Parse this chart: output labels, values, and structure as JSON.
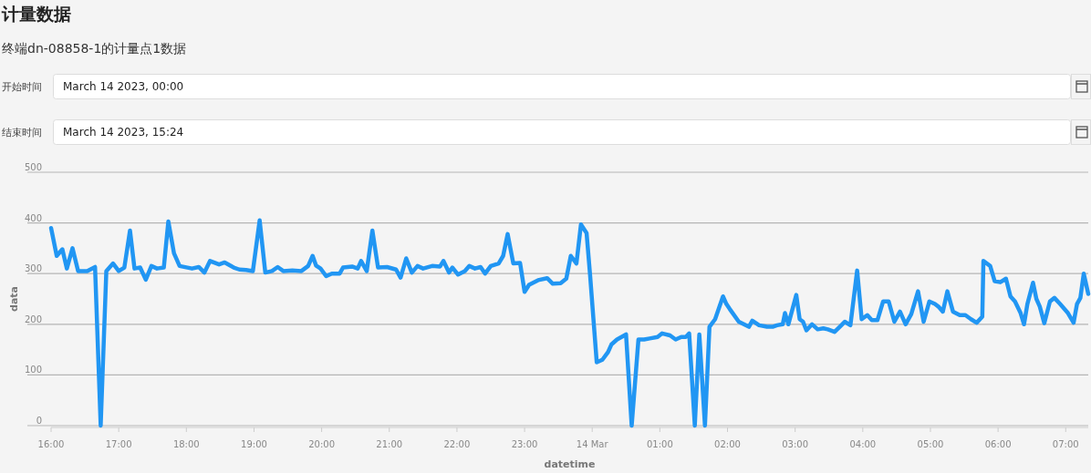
{
  "chart_data": {
    "type": "line",
    "title": "计量数据",
    "subtitle": "终端dn-08858-1的计量点1数据",
    "annotations": [
      "开始时间",
      "March 14 2023, 00:00",
      "结束时间",
      "March 14 2023, 15:24"
    ],
    "xlabel": "datetime",
    "ylabel": "data",
    "xlim": [
      "2023-03-13T16:00",
      "2023-03-14T07:20"
    ],
    "ylim": [
      0,
      500
    ],
    "xticks": [
      {
        "value": "2023-03-13T16:00",
        "label": "16:00"
      },
      {
        "value": "2023-03-13T17:00",
        "label": "17:00"
      },
      {
        "value": "2023-03-13T18:00",
        "label": "18:00"
      },
      {
        "value": "2023-03-13T19:00",
        "label": "19:00"
      },
      {
        "value": "2023-03-13T20:00",
        "label": "20:00"
      },
      {
        "value": "2023-03-13T21:00",
        "label": "21:00"
      },
      {
        "value": "2023-03-13T22:00",
        "label": "22:00"
      },
      {
        "value": "2023-03-13T23:00",
        "label": "23:00"
      },
      {
        "value": "2023-03-14T00:00",
        "label": "14 Mar"
      },
      {
        "value": "2023-03-14T01:00",
        "label": "01:00"
      },
      {
        "value": "2023-03-14T02:00",
        "label": "02:00"
      },
      {
        "value": "2023-03-14T03:00",
        "label": "03:00"
      },
      {
        "value": "2023-03-14T04:00",
        "label": "04:00"
      },
      {
        "value": "2023-03-14T05:00",
        "label": "05:00"
      },
      {
        "value": "2023-03-14T06:00",
        "label": "06:00"
      },
      {
        "value": "2023-03-14T07:00",
        "label": "07:00"
      }
    ],
    "yticks": [
      0,
      100,
      200,
      300,
      400,
      500
    ],
    "grid": "y",
    "x": [
      "2023-03-13T16:00",
      "2023-03-13T16:05",
      "2023-03-13T16:10",
      "2023-03-13T16:14",
      "2023-03-13T16:19",
      "2023-03-13T16:24",
      "2023-03-13T16:32",
      "2023-03-13T16:39",
      "2023-03-13T16:44",
      "2023-03-13T16:49",
      "2023-03-13T16:55",
      "2023-03-13T17:00",
      "2023-03-13T17:05",
      "2023-03-13T17:10",
      "2023-03-13T17:14",
      "2023-03-13T17:19",
      "2023-03-13T17:24",
      "2023-03-13T17:29",
      "2023-03-13T17:34",
      "2023-03-13T17:40",
      "2023-03-13T17:44",
      "2023-03-13T17:49",
      "2023-03-13T17:54",
      "2023-03-13T18:05",
      "2023-03-13T18:11",
      "2023-03-13T18:16",
      "2023-03-13T18:21",
      "2023-03-13T18:29",
      "2023-03-13T18:34",
      "2023-03-13T18:42",
      "2023-03-13T18:47",
      "2023-03-13T18:53",
      "2023-03-13T18:59",
      "2023-03-13T19:05",
      "2023-03-13T19:10",
      "2023-03-13T19:16",
      "2023-03-13T19:21",
      "2023-03-13T19:26",
      "2023-03-13T19:34",
      "2023-03-13T19:42",
      "2023-03-13T19:48",
      "2023-03-13T19:52",
      "2023-03-13T19:55",
      "2023-03-13T19:59",
      "2023-03-13T20:04",
      "2023-03-13T20:09",
      "2023-03-13T20:16",
      "2023-03-13T20:19",
      "2023-03-13T20:27",
      "2023-03-13T20:32",
      "2023-03-13T20:35",
      "2023-03-13T20:40",
      "2023-03-13T20:45",
      "2023-03-13T20:50",
      "2023-03-13T20:58",
      "2023-03-13T21:06",
      "2023-03-13T21:10",
      "2023-03-13T21:15",
      "2023-03-13T21:20",
      "2023-03-13T21:25",
      "2023-03-13T21:30",
      "2023-03-13T21:38",
      "2023-03-13T21:45",
      "2023-03-13T21:48",
      "2023-03-13T21:53",
      "2023-03-13T21:56",
      "2023-03-13T22:01",
      "2023-03-13T22:07",
      "2023-03-13T22:11",
      "2023-03-13T22:16",
      "2023-03-13T22:21",
      "2023-03-13T22:25",
      "2023-03-13T22:30",
      "2023-03-13T22:37",
      "2023-03-13T22:41",
      "2023-03-13T22:45",
      "2023-03-13T22:50",
      "2023-03-13T22:56",
      "2023-03-13T23:00",
      "2023-03-13T23:04",
      "2023-03-13T23:12",
      "2023-03-13T23:20",
      "2023-03-13T23:25",
      "2023-03-13T23:32",
      "2023-03-13T23:37",
      "2023-03-13T23:41",
      "2023-03-13T23:46",
      "2023-03-13T23:50",
      "2023-03-13T23:55",
      "2023-03-13T23:58",
      "2023-03-14T00:04",
      "2023-03-14T00:09",
      "2023-03-14T00:14",
      "2023-03-14T00:17",
      "2023-03-14T00:22",
      "2023-03-14T00:30",
      "2023-03-14T00:35",
      "2023-03-14T00:41",
      "2023-03-14T00:46",
      "2023-03-14T00:51",
      "2023-03-14T00:58",
      "2023-03-14T01:02",
      "2023-03-14T01:09",
      "2023-03-14T01:14",
      "2023-03-14T01:19",
      "2023-03-14T01:23",
      "2023-03-14T01:26",
      "2023-03-14T01:31",
      "2023-03-14T01:35",
      "2023-03-14T01:40",
      "2023-03-14T01:44",
      "2023-03-14T01:49",
      "2023-03-14T01:56",
      "2023-03-14T01:59",
      "2023-03-14T02:02",
      "2023-03-14T02:10",
      "2023-03-14T02:19",
      "2023-03-14T02:22",
      "2023-03-14T02:28",
      "2023-03-14T02:35",
      "2023-03-14T02:40",
      "2023-03-14T02:44",
      "2023-03-14T02:49",
      "2023-03-14T02:51",
      "2023-03-14T02:54",
      "2023-03-14T03:01",
      "2023-03-14T03:04",
      "2023-03-14T03:07",
      "2023-03-14T03:10",
      "2023-03-14T03:15",
      "2023-03-14T03:20",
      "2023-03-14T03:25",
      "2023-03-14T03:29",
      "2023-03-14T03:35",
      "2023-03-14T03:41",
      "2023-03-14T03:44",
      "2023-03-14T03:49",
      "2023-03-14T03:55",
      "2023-03-14T03:59",
      "2023-03-14T04:04",
      "2023-03-14T04:08",
      "2023-03-14T04:13",
      "2023-03-14T04:18",
      "2023-03-14T04:23",
      "2023-03-14T04:28",
      "2023-03-14T04:33",
      "2023-03-14T04:38",
      "2023-03-14T04:43",
      "2023-03-14T04:49",
      "2023-03-14T04:54",
      "2023-03-14T04:59",
      "2023-03-14T05:04",
      "2023-03-14T05:07",
      "2023-03-14T05:11",
      "2023-03-14T05:15",
      "2023-03-14T05:20",
      "2023-03-14T05:26",
      "2023-03-14T05:31",
      "2023-03-14T05:36",
      "2023-03-14T05:41",
      "2023-03-14T05:46",
      "2023-03-14T05:47",
      "2023-03-14T05:53",
      "2023-03-14T05:57",
      "2023-03-14T06:02",
      "2023-03-14T06:07",
      "2023-03-14T06:11",
      "2023-03-14T06:15",
      "2023-03-14T06:20",
      "2023-03-14T06:23",
      "2023-03-14T06:26",
      "2023-03-14T06:31",
      "2023-03-14T06:34",
      "2023-03-14T06:37",
      "2023-03-14T06:41",
      "2023-03-14T06:46",
      "2023-03-14T06:50",
      "2023-03-14T06:55",
      "2023-03-14T07:02",
      "2023-03-14T07:07",
      "2023-03-14T07:10",
      "2023-03-14T07:13",
      "2023-03-14T07:16",
      "2023-03-14T07:20"
    ],
    "series": [
      {
        "color": "#2196f3",
        "values": [
          390,
          335,
          348,
          310,
          350,
          305,
          305,
          313,
          0,
          305,
          320,
          305,
          312,
          385,
          310,
          312,
          288,
          315,
          310,
          312,
          403,
          340,
          315,
          310,
          313,
          302,
          325,
          318,
          322,
          312,
          308,
          307,
          305,
          405,
          302,
          305,
          313,
          305,
          306,
          305,
          315,
          335,
          316,
          310,
          295,
          300,
          300,
          312,
          314,
          310,
          325,
          305,
          385,
          312,
          313,
          308,
          292,
          330,
          302,
          315,
          310,
          315,
          314,
          325,
          302,
          312,
          298,
          305,
          315,
          310,
          313,
          300,
          315,
          320,
          335,
          378,
          320,
          321,
          264,
          278,
          287,
          291,
          280,
          281,
          290,
          335,
          320,
          397,
          380,
          300,
          125,
          130,
          145,
          160,
          170,
          180,
          0,
          170,
          170,
          172,
          175,
          182,
          178,
          170,
          175,
          175,
          182,
          0,
          180,
          0,
          195,
          210,
          255,
          240,
          230,
          205,
          195,
          207,
          198,
          195,
          195,
          198,
          200,
          222,
          200,
          258,
          210,
          205,
          188,
          200,
          190,
          192,
          190,
          185,
          198,
          205,
          198,
          306,
          210,
          218,
          208,
          208,
          245,
          245,
          205,
          225,
          200,
          220,
          265,
          205,
          245,
          240,
          235,
          225,
          265,
          225,
          218,
          218,
          210,
          203,
          215,
          325,
          315,
          285,
          283,
          290,
          255,
          245,
          222,
          200,
          240,
          282,
          250,
          235,
          202,
          245,
          252,
          240,
          222,
          203,
          240,
          252,
          300,
          260
        ]
      }
    ]
  }
}
